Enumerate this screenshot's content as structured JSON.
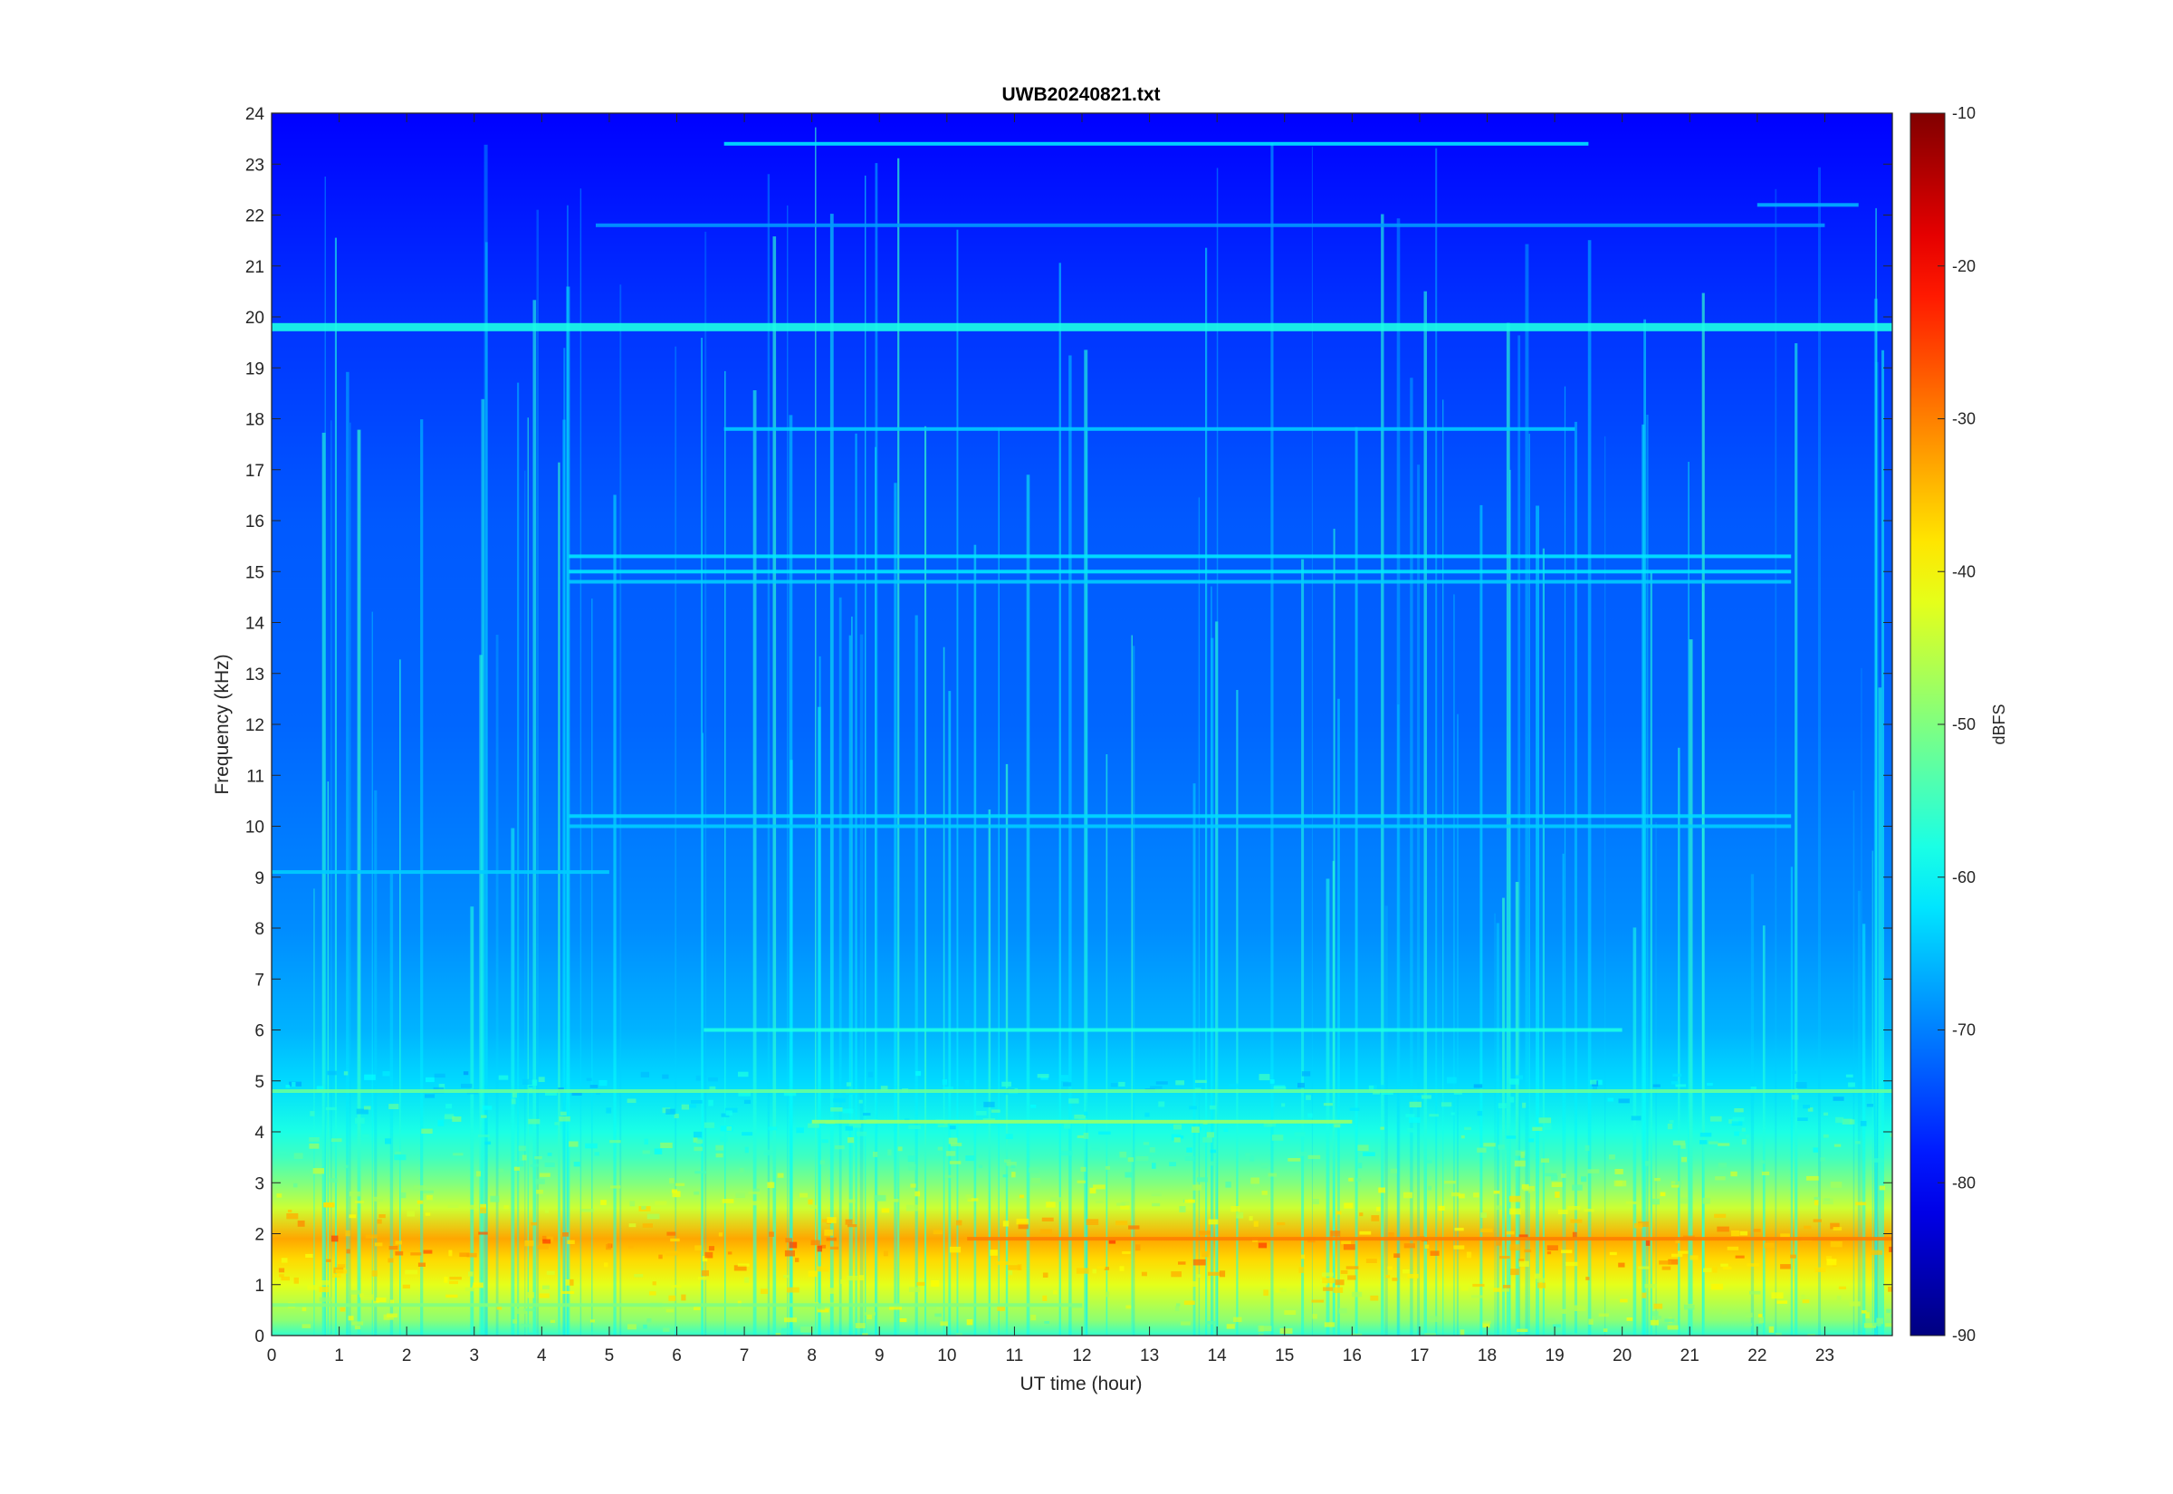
{
  "chart_data": {
    "type": "heatmap",
    "title": "UWB20240821.txt",
    "xlabel": "UT time (hour)",
    "ylabel": "Frequency (kHz)",
    "xlim": [
      0,
      24
    ],
    "ylim": [
      0,
      24
    ],
    "x_ticks": [
      "0",
      "1",
      "2",
      "3",
      "4",
      "5",
      "6",
      "7",
      "8",
      "9",
      "10",
      "11",
      "12",
      "13",
      "14",
      "15",
      "16",
      "17",
      "18",
      "19",
      "20",
      "21",
      "22",
      "23"
    ],
    "y_ticks": [
      "0",
      "1",
      "2",
      "3",
      "4",
      "5",
      "6",
      "7",
      "8",
      "9",
      "10",
      "11",
      "12",
      "13",
      "14",
      "15",
      "16",
      "17",
      "18",
      "19",
      "20",
      "21",
      "22",
      "23",
      "24"
    ],
    "colorbar": {
      "label": "dBFS",
      "range": [
        -90,
        -10
      ],
      "ticks": [
        "-10",
        "-20",
        "-30",
        "-40",
        "-50",
        "-60",
        "-70",
        "-80",
        "-90"
      ],
      "colormap": "jet"
    },
    "grid": false,
    "level_profile_dbfs_by_freq_khz": [
      {
        "f": 0.0,
        "level": -56
      },
      {
        "f": 0.3,
        "level": -49
      },
      {
        "f": 1.0,
        "level": -42
      },
      {
        "f": 1.5,
        "level": -37
      },
      {
        "f": 1.9,
        "level": -33
      },
      {
        "f": 2.5,
        "level": -44
      },
      {
        "f": 3.0,
        "level": -50
      },
      {
        "f": 3.5,
        "level": -55
      },
      {
        "f": 4.0,
        "level": -58
      },
      {
        "f": 5.0,
        "level": -63
      },
      {
        "f": 6.0,
        "level": -66
      },
      {
        "f": 8.0,
        "level": -69
      },
      {
        "f": 12.0,
        "level": -72
      },
      {
        "f": 16.0,
        "level": -73
      },
      {
        "f": 20.0,
        "level": -76
      },
      {
        "f": 24.0,
        "level": -80
      }
    ],
    "narrowband_lines": [
      {
        "freq_khz": 19.8,
        "t_start": 0,
        "t_end": 24,
        "level": -58
      },
      {
        "freq_khz": 23.4,
        "t_start": 6.7,
        "t_end": 19.5,
        "level": -62
      },
      {
        "freq_khz": 21.8,
        "t_start": 4.8,
        "t_end": 23.0,
        "level": -68
      },
      {
        "freq_khz": 22.2,
        "t_start": 22.0,
        "t_end": 23.5,
        "level": -66
      },
      {
        "freq_khz": 17.8,
        "t_start": 6.7,
        "t_end": 19.3,
        "level": -64
      },
      {
        "freq_khz": 15.3,
        "t_start": 4.4,
        "t_end": 22.5,
        "level": -62
      },
      {
        "freq_khz": 15.0,
        "t_start": 4.4,
        "t_end": 22.5,
        "level": -62
      },
      {
        "freq_khz": 14.8,
        "t_start": 4.4,
        "t_end": 22.5,
        "level": -64
      },
      {
        "freq_khz": 10.2,
        "t_start": 4.4,
        "t_end": 22.5,
        "level": -63
      },
      {
        "freq_khz": 10.0,
        "t_start": 4.4,
        "t_end": 22.5,
        "level": -64
      },
      {
        "freq_khz": 9.1,
        "t_start": 0,
        "t_end": 5.0,
        "level": -64
      },
      {
        "freq_khz": 6.0,
        "t_start": 6.4,
        "t_end": 20.0,
        "level": -58
      },
      {
        "freq_khz": 4.8,
        "t_start": 0,
        "t_end": 24,
        "level": -52
      },
      {
        "freq_khz": 4.2,
        "t_start": 8.0,
        "t_end": 16.0,
        "level": -48
      },
      {
        "freq_khz": 1.9,
        "t_start": 10.3,
        "t_end": 24,
        "level": -30
      },
      {
        "freq_khz": 0.6,
        "t_start": 0,
        "t_end": 12.0,
        "level": -50
      }
    ]
  }
}
